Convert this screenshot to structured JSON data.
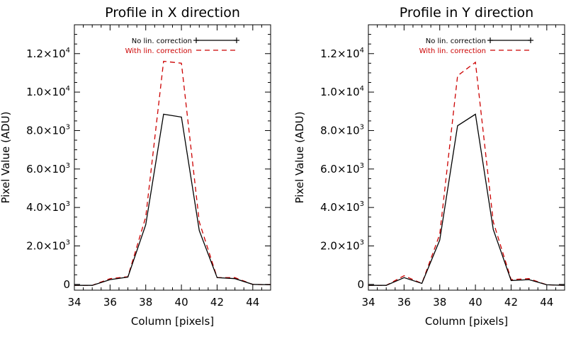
{
  "chart_data": [
    {
      "type": "line",
      "title": "Profile in X direction",
      "xlabel": "Column [pixels]",
      "ylabel": "Pixel Value (ADU)",
      "xlim": [
        34,
        45
      ],
      "ylim": [
        -300,
        13500
      ],
      "grid": false,
      "legend_position": "top-right",
      "x_ticks": [
        {
          "value": 34,
          "label": "34"
        },
        {
          "value": 36,
          "label": "36"
        },
        {
          "value": 38,
          "label": "38"
        },
        {
          "value": 40,
          "label": "40"
        },
        {
          "value": 42,
          "label": "42"
        },
        {
          "value": 44,
          "label": "44"
        }
      ],
      "y_ticks": [
        {
          "value": 0,
          "label": "0"
        },
        {
          "value": 2000,
          "base": "2.0×10",
          "exp": "3"
        },
        {
          "value": 4000,
          "base": "4.0×10",
          "exp": "3"
        },
        {
          "value": 6000,
          "base": "6.0×10",
          "exp": "3"
        },
        {
          "value": 8000,
          "base": "8.0×10",
          "exp": "3"
        },
        {
          "value": 10000,
          "base": "1.0×10",
          "exp": "4"
        },
        {
          "value": 12000,
          "base": "1.2×10",
          "exp": "4"
        }
      ],
      "x": [
        34,
        35,
        36,
        37,
        38,
        39,
        40,
        41,
        42,
        43,
        44,
        45
      ],
      "series": [
        {
          "name": "No lin. correction",
          "color": "#000000",
          "dash": "solid",
          "values": [
            -50,
            -50,
            250,
            380,
            3100,
            8850,
            8700,
            2800,
            350,
            300,
            0,
            -20
          ]
        },
        {
          "name": "With lin. correction",
          "color": "#cc0000",
          "dash": "dashed",
          "values": [
            -50,
            -50,
            300,
            400,
            3500,
            11600,
            11500,
            3250,
            350,
            350,
            0,
            -20
          ]
        }
      ]
    },
    {
      "type": "line",
      "title": "Profile in Y direction",
      "xlabel": "Column [pixels]",
      "ylabel": "Pixel Value (ADU)",
      "xlim": [
        34,
        45
      ],
      "ylim": [
        -300,
        13500
      ],
      "grid": false,
      "legend_position": "top-right",
      "x_ticks": [
        {
          "value": 34,
          "label": "34"
        },
        {
          "value": 36,
          "label": "36"
        },
        {
          "value": 38,
          "label": "38"
        },
        {
          "value": 40,
          "label": "40"
        },
        {
          "value": 42,
          "label": "42"
        },
        {
          "value": 44,
          "label": "44"
        }
      ],
      "y_ticks": [
        {
          "value": 0,
          "label": "0"
        },
        {
          "value": 2000,
          "base": "2.0×10",
          "exp": "3"
        },
        {
          "value": 4000,
          "base": "4.0×10",
          "exp": "3"
        },
        {
          "value": 6000,
          "base": "6.0×10",
          "exp": "3"
        },
        {
          "value": 8000,
          "base": "8.0×10",
          "exp": "3"
        },
        {
          "value": 10000,
          "base": "1.0×10",
          "exp": "4"
        },
        {
          "value": 12000,
          "base": "1.2×10",
          "exp": "4"
        }
      ],
      "x": [
        34,
        35,
        36,
        37,
        38,
        39,
        40,
        41,
        42,
        43,
        44,
        45
      ],
      "series": [
        {
          "name": "No lin. correction",
          "color": "#000000",
          "dash": "solid",
          "values": [
            -50,
            -50,
            350,
            50,
            2300,
            8250,
            8850,
            2850,
            200,
            250,
            -20,
            -50
          ]
        },
        {
          "name": "With lin. correction",
          "color": "#cc0000",
          "dash": "dashed",
          "values": [
            -50,
            -50,
            450,
            50,
            2600,
            10850,
            11550,
            3250,
            250,
            300,
            -20,
            -50
          ]
        }
      ]
    }
  ]
}
